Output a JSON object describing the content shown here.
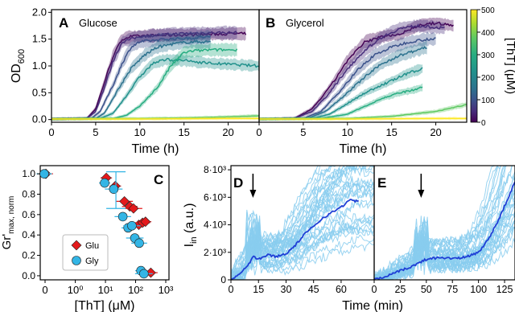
{
  "panel_letters": {
    "A": "A",
    "B": "B",
    "C": "C",
    "D": "D",
    "E": "E"
  },
  "colorbar": {
    "label": "[ThT] (μM)",
    "ticks": [
      "500",
      "400",
      "300",
      "200",
      "100",
      "0"
    ],
    "colormap": "viridis"
  },
  "chart_data": [
    {
      "panel": "A",
      "type": "line",
      "title": "Glucose",
      "xlabel": "Time (h)",
      "ylabel": "OD600",
      "ylabel_main": "OD",
      "ylabel_sub": "600",
      "xlim": [
        0,
        23.5
      ],
      "ylim": [
        -0.05,
        2.05
      ],
      "xticks": [
        "0",
        "5",
        "10",
        "15",
        "20"
      ],
      "xtick_values": [
        0,
        5,
        10,
        15,
        20
      ],
      "yticks": [
        "0.0",
        "0.5",
        "1.0",
        "1.5",
        "2.0"
      ],
      "ytick_values": [
        0,
        0.5,
        1.0,
        1.5,
        2.0
      ],
      "series": [
        {
          "tht": 0,
          "color": "#440154",
          "points": [
            [
              0,
              0.01
            ],
            [
              4,
              0.02
            ],
            [
              5,
              0.2
            ],
            [
              6,
              0.7
            ],
            [
              7,
              1.2
            ],
            [
              8,
              1.5
            ],
            [
              9,
              1.55
            ],
            [
              12,
              1.57
            ],
            [
              16,
              1.58
            ],
            [
              20,
              1.6
            ],
            [
              22,
              1.6
            ]
          ]
        },
        {
          "tht": 10,
          "color": "#472d7b",
          "points": [
            [
              0,
              0.01
            ],
            [
              4,
              0.02
            ],
            [
              5,
              0.15
            ],
            [
              6,
              0.6
            ],
            [
              7,
              1.1
            ],
            [
              8,
              1.45
            ],
            [
              10,
              1.55
            ],
            [
              14,
              1.6
            ],
            [
              18,
              1.62
            ],
            [
              21,
              1.62
            ]
          ]
        },
        {
          "tht": 20,
          "color": "#3b528b",
          "points": [
            [
              0,
              0.01
            ],
            [
              4.5,
              0.02
            ],
            [
              5.5,
              0.15
            ],
            [
              7,
              0.65
            ],
            [
              8,
              1.05
            ],
            [
              9,
              1.35
            ],
            [
              10,
              1.45
            ],
            [
              13,
              1.5
            ],
            [
              16,
              1.52
            ],
            [
              18,
              1.55
            ]
          ]
        },
        {
          "tht": 40,
          "color": "#2c728e",
          "points": [
            [
              0,
              0.01
            ],
            [
              5,
              0.02
            ],
            [
              6,
              0.12
            ],
            [
              7.5,
              0.55
            ],
            [
              9,
              0.95
            ],
            [
              10.5,
              1.2
            ],
            [
              12,
              1.35
            ],
            [
              14,
              1.42
            ],
            [
              16,
              1.45
            ],
            [
              18,
              1.45
            ]
          ]
        },
        {
          "tht": 80,
          "color": "#21918c",
          "points": [
            [
              0,
              0.01
            ],
            [
              5.5,
              0.02
            ],
            [
              7,
              0.12
            ],
            [
              8.5,
              0.45
            ],
            [
              10,
              0.8
            ],
            [
              11.5,
              1.05
            ],
            [
              13,
              1.12
            ],
            [
              15,
              1.1
            ],
            [
              18,
              1.05
            ],
            [
              23.5,
              1.0
            ]
          ]
        },
        {
          "tht": 160,
          "color": "#27ad81",
          "points": [
            [
              0,
              0.01
            ],
            [
              7,
              0.02
            ],
            [
              8.5,
              0.08
            ],
            [
              10,
              0.25
            ],
            [
              12,
              0.6
            ],
            [
              13.5,
              1.0
            ],
            [
              15,
              1.25
            ],
            [
              16,
              1.28
            ],
            [
              18,
              1.3
            ],
            [
              20,
              1.3
            ],
            [
              21,
              1.3
            ]
          ]
        },
        {
          "tht": 250,
          "color": "#5ec962",
          "points": [
            [
              0,
              0.01
            ],
            [
              10,
              0.02
            ],
            [
              15,
              0.03
            ],
            [
              20,
              0.05
            ],
            [
              23.5,
              0.07
            ]
          ]
        },
        {
          "tht": 500,
          "color": "#fde725",
          "points": [
            [
              0,
              0.01
            ],
            [
              10,
              0.01
            ],
            [
              20,
              0.02
            ],
            [
              23.5,
              0.02
            ]
          ]
        }
      ]
    },
    {
      "panel": "B",
      "type": "line",
      "title": "Glycerol",
      "xlabel": "Time (h)",
      "xlim": [
        0,
        23.5
      ],
      "ylim": [
        -0.05,
        2.05
      ],
      "xticks": [
        "0",
        "5",
        "10",
        "15",
        "20"
      ],
      "xtick_values": [
        0,
        5,
        10,
        15,
        20
      ],
      "series": [
        {
          "tht": 0,
          "color": "#440154",
          "points": [
            [
              0,
              0.01
            ],
            [
              4,
              0.02
            ],
            [
              6,
              0.2
            ],
            [
              8,
              0.6
            ],
            [
              10,
              1.1
            ],
            [
              12,
              1.45
            ],
            [
              14,
              1.55
            ],
            [
              16,
              1.6
            ],
            [
              18,
              1.75
            ],
            [
              20,
              1.8
            ],
            [
              22,
              1.75
            ]
          ]
        },
        {
          "tht": 10,
          "color": "#472d7b",
          "points": [
            [
              0,
              0.01
            ],
            [
              4,
              0.02
            ],
            [
              6,
              0.15
            ],
            [
              8,
              0.5
            ],
            [
              10,
              0.95
            ],
            [
              12,
              1.3
            ],
            [
              14,
              1.55
            ],
            [
              16,
              1.7
            ],
            [
              18,
              1.75
            ],
            [
              20,
              1.72
            ],
            [
              21,
              1.7
            ]
          ]
        },
        {
          "tht": 20,
          "color": "#3b528b",
          "points": [
            [
              0,
              0.01
            ],
            [
              5,
              0.02
            ],
            [
              7,
              0.15
            ],
            [
              9,
              0.5
            ],
            [
              11,
              0.9
            ],
            [
              13,
              1.2
            ],
            [
              15,
              1.35
            ],
            [
              17,
              1.45
            ],
            [
              19,
              1.5
            ],
            [
              20,
              1.5
            ]
          ]
        },
        {
          "tht": 40,
          "color": "#2c728e",
          "points": [
            [
              0,
              0.01
            ],
            [
              5.5,
              0.02
            ],
            [
              7.5,
              0.15
            ],
            [
              10,
              0.5
            ],
            [
              12,
              0.8
            ],
            [
              14,
              1.05
            ],
            [
              16,
              1.2
            ],
            [
              18,
              1.3
            ],
            [
              19,
              1.35
            ]
          ]
        },
        {
          "tht": 80,
          "color": "#21918c",
          "points": [
            [
              0,
              0.01
            ],
            [
              6,
              0.02
            ],
            [
              8,
              0.1
            ],
            [
              10,
              0.3
            ],
            [
              12,
              0.5
            ],
            [
              14,
              0.65
            ],
            [
              16,
              0.8
            ],
            [
              17.5,
              0.9
            ],
            [
              18.5,
              0.95
            ]
          ]
        },
        {
          "tht": 160,
          "color": "#27ad81",
          "points": [
            [
              0,
              0.01
            ],
            [
              7,
              0.02
            ],
            [
              10,
              0.1
            ],
            [
              12,
              0.25
            ],
            [
              14,
              0.4
            ],
            [
              16,
              0.5
            ],
            [
              17.5,
              0.55
            ],
            [
              18.5,
              0.6
            ]
          ]
        },
        {
          "tht": 250,
          "color": "#5ec962",
          "points": [
            [
              0,
              0.01
            ],
            [
              10,
              0.02
            ],
            [
              15,
              0.06
            ],
            [
              20,
              0.15
            ],
            [
              23.5,
              0.28
            ]
          ]
        },
        {
          "tht": 500,
          "color": "#fde725",
          "points": [
            [
              0,
              0.01
            ],
            [
              10,
              0.01
            ],
            [
              20,
              0.02
            ],
            [
              23.5,
              0.02
            ]
          ]
        }
      ]
    },
    {
      "panel": "C",
      "type": "scatter",
      "ylabel": "Gr'max, norm",
      "ylabel_main": "Gr'",
      "ylabel_sub": "max, norm",
      "xlabel": "[ThT] (μM)",
      "xscale": "symlog",
      "xticks": [
        "0",
        "10⁰",
        "10¹",
        "10²",
        "10³"
      ],
      "xtick_values": [
        0,
        1,
        10,
        100,
        1000
      ],
      "yticks": [
        "0.0",
        "0.2",
        "0.4",
        "0.6",
        "0.8",
        "1.0"
      ],
      "ytick_values": [
        0,
        0.2,
        0.4,
        0.6,
        0.8,
        1.0
      ],
      "ylim": [
        -0.04,
        1.08
      ],
      "legend": {
        "position": "lower-left",
        "entries": [
          "Glu",
          "Gly"
        ]
      },
      "series": [
        {
          "name": "Glu",
          "marker": "diamond",
          "color": "#e41a1c",
          "points": [
            [
              0,
              1.0
            ],
            [
              10,
              0.96
            ],
            [
              20,
              0.88
            ],
            [
              40,
              0.73
            ],
            [
              60,
              0.68
            ],
            [
              80,
              0.66
            ],
            [
              120,
              0.5
            ],
            [
              160,
              0.52
            ],
            [
              200,
              0.53
            ],
            [
              300,
              0.03
            ]
          ]
        },
        {
          "name": "Gly",
          "marker": "circle",
          "color": "#33b5e5",
          "points": [
            [
              0,
              1.0
            ],
            [
              10,
              0.91
            ],
            [
              20,
              0.85
            ],
            [
              40,
              0.58
            ],
            [
              60,
              0.47
            ],
            [
              80,
              0.49
            ],
            [
              100,
              0.37
            ],
            [
              140,
              0.32
            ],
            [
              160,
              0.05
            ],
            [
              200,
              0.02
            ]
          ]
        }
      ]
    },
    {
      "panel": "D",
      "type": "line",
      "ylabel": "Iin (a.u.)",
      "ylabel_main": "I",
      "ylabel_sub": "in",
      "xlim": [
        0,
        78
      ],
      "ylim": [
        0,
        8300
      ],
      "xticks": [
        "0",
        "15",
        "30",
        "45",
        "60"
      ],
      "xtick_values": [
        0,
        15,
        30,
        45,
        60
      ],
      "yticks": [
        "0",
        "2·10³",
        "4·10³",
        "6·10³",
        "8·10³"
      ],
      "ytick_values": [
        0,
        2000,
        4000,
        6000,
        8000
      ],
      "arrow_at": 12,
      "mean_series": {
        "color": "#1f3fd6",
        "points": [
          [
            0,
            0
          ],
          [
            5,
            500
          ],
          [
            10,
            1200
          ],
          [
            12,
            1700
          ],
          [
            15,
            1500
          ],
          [
            20,
            1800
          ],
          [
            25,
            1700
          ],
          [
            30,
            1900
          ],
          [
            35,
            2500
          ],
          [
            40,
            3300
          ],
          [
            45,
            3900
          ],
          [
            50,
            4500
          ],
          [
            55,
            4900
          ],
          [
            60,
            5300
          ],
          [
            65,
            5800
          ],
          [
            70,
            5700
          ]
        ]
      },
      "cell_color": "#88ccee"
    },
    {
      "panel": "E",
      "type": "line",
      "xlim": [
        0,
        135
      ],
      "ylim": [
        0,
        8300
      ],
      "xticks": [
        "0",
        "25",
        "50",
        "75",
        "100",
        "125"
      ],
      "xtick_values": [
        0,
        25,
        50,
        75,
        100,
        125
      ],
      "arrow_at": 45,
      "mean_series": {
        "color": "#1f3fd6",
        "points": [
          [
            0,
            0
          ],
          [
            10,
            200
          ],
          [
            20,
            500
          ],
          [
            30,
            800
          ],
          [
            40,
            1100
          ],
          [
            45,
            1300
          ],
          [
            50,
            1500
          ],
          [
            60,
            1600
          ],
          [
            70,
            1600
          ],
          [
            80,
            1550
          ],
          [
            90,
            1700
          ],
          [
            100,
            2000
          ],
          [
            110,
            3000
          ],
          [
            120,
            4500
          ],
          [
            130,
            6200
          ],
          [
            135,
            7200
          ]
        ]
      },
      "cell_color": "#88ccee"
    }
  ],
  "shared_xlabel_DE": "Time (min)"
}
